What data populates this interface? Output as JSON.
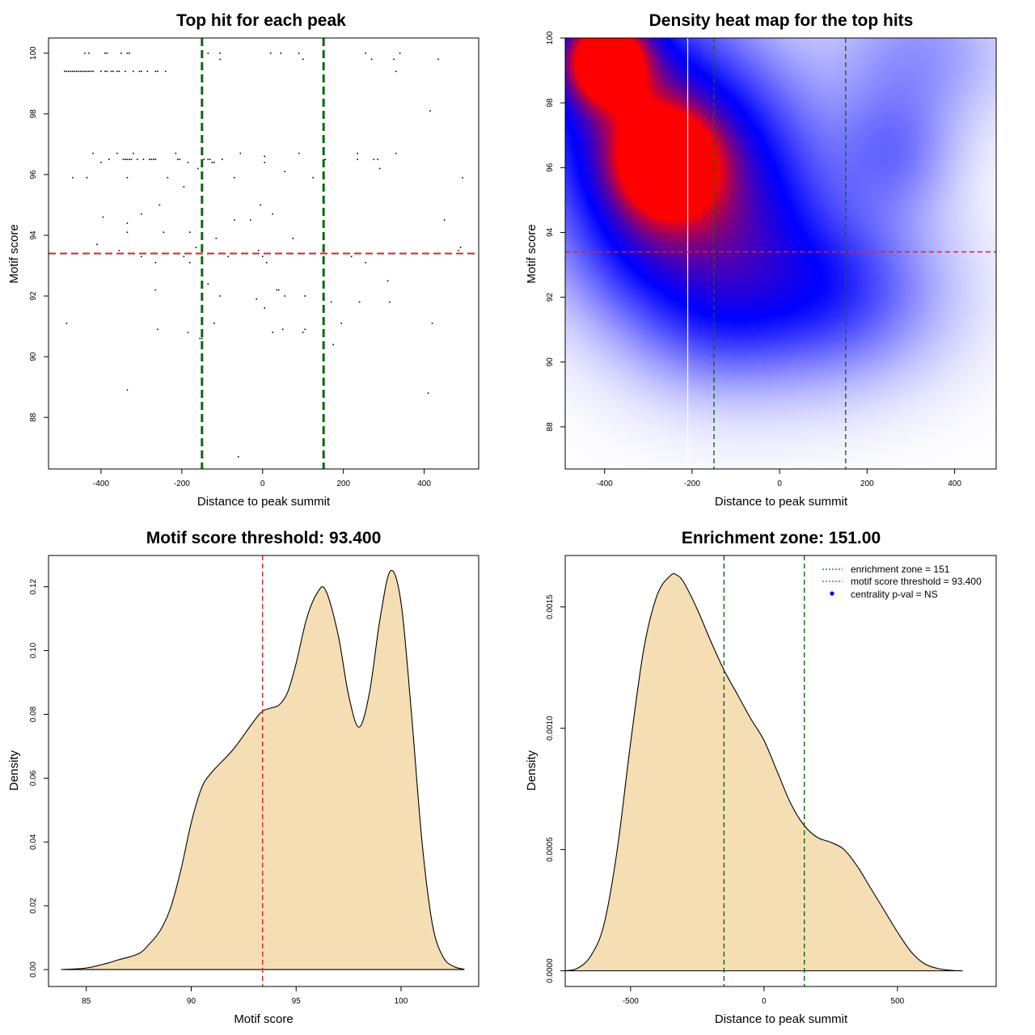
{
  "colors": {
    "axis": "#000000",
    "threshold_line": "#dd2222",
    "zone_line": "#116611",
    "density_fill": "#f5deb3",
    "point": "#000000",
    "heat_low": "#ffffff",
    "heat_mid": "#0000ff",
    "heat_high": "#ff0000"
  },
  "chart_data": [
    {
      "id": "scatter",
      "type": "scatter",
      "title": "Top hit for each peak",
      "xlabel": "Distance to peak summit",
      "ylabel": "Motif score",
      "xlim": [
        -530,
        535
      ],
      "ylim": [
        86.3,
        100.5
      ],
      "xticks": [
        -400,
        -200,
        0,
        200,
        400
      ],
      "yticks": [
        88,
        90,
        92,
        94,
        96,
        98,
        100
      ],
      "vlines": [
        -150,
        151
      ],
      "hline": 93.4,
      "points": [
        [
          -490,
          99.4
        ],
        [
          -485,
          99.4
        ],
        [
          -480,
          99.4
        ],
        [
          -475,
          99.4
        ],
        [
          -470,
          99.4
        ],
        [
          -465,
          99.4
        ],
        [
          -460,
          99.4
        ],
        [
          -455,
          99.4
        ],
        [
          -450,
          99.4
        ],
        [
          -445,
          99.4
        ],
        [
          -440,
          99.4
        ],
        [
          -435,
          99.4
        ],
        [
          -430,
          99.4
        ],
        [
          -425,
          99.4
        ],
        [
          -420,
          99.4
        ],
        [
          -400,
          99.4
        ],
        [
          -390,
          99.4
        ],
        [
          -385,
          99.4
        ],
        [
          -375,
          99.4
        ],
        [
          -370,
          99.4
        ],
        [
          -360,
          99.4
        ],
        [
          -355,
          99.4
        ],
        [
          -340,
          99.4
        ],
        [
          -320,
          99.4
        ],
        [
          -305,
          99.4
        ],
        [
          -300,
          99.4
        ],
        [
          -285,
          99.4
        ],
        [
          -265,
          99.4
        ],
        [
          -260,
          99.4
        ],
        [
          -240,
          99.4
        ],
        [
          -440,
          100
        ],
        [
          -430,
          100
        ],
        [
          -390,
          100
        ],
        [
          -385,
          100
        ],
        [
          -350,
          100
        ],
        [
          -335,
          100
        ],
        [
          -330,
          100
        ],
        [
          -135,
          100
        ],
        [
          -105,
          100
        ],
        [
          20,
          100
        ],
        [
          45,
          100
        ],
        [
          90,
          100
        ],
        [
          255,
          100
        ],
        [
          340,
          100
        ],
        [
          -105,
          99.8
        ],
        [
          100,
          99.8
        ],
        [
          270,
          99.8
        ],
        [
          325,
          99.8
        ],
        [
          435,
          99.8
        ],
        [
          330,
          99.4
        ],
        [
          415,
          98.1
        ],
        [
          -420,
          96.7
        ],
        [
          -360,
          96.7
        ],
        [
          -320,
          96.7
        ],
        [
          -215,
          96.7
        ],
        [
          -55,
          96.7
        ],
        [
          5,
          96.6
        ],
        [
          90,
          96.7
        ],
        [
          235,
          96.7
        ],
        [
          330,
          96.7
        ],
        [
          -400,
          96.4
        ],
        [
          -380,
          96.5
        ],
        [
          -345,
          96.5
        ],
        [
          -340,
          96.5
        ],
        [
          -335,
          96.5
        ],
        [
          -330,
          96.5
        ],
        [
          -325,
          96.5
        ],
        [
          -310,
          96.5
        ],
        [
          -295,
          96.5
        ],
        [
          -280,
          96.5
        ],
        [
          -275,
          96.5
        ],
        [
          -270,
          96.5
        ],
        [
          -265,
          96.5
        ],
        [
          -210,
          96.5
        ],
        [
          -205,
          96.5
        ],
        [
          -185,
          96.4
        ],
        [
          -145,
          96.5
        ],
        [
          -135,
          96.5
        ],
        [
          -130,
          96.5
        ],
        [
          -125,
          96.4
        ],
        [
          -120,
          96.4
        ],
        [
          -100,
          96.5
        ],
        [
          5,
          96.4
        ],
        [
          155,
          96.5
        ],
        [
          235,
          96.5
        ],
        [
          275,
          96.5
        ],
        [
          285,
          96.5
        ],
        [
          290,
          96.2
        ],
        [
          -160,
          96.2
        ],
        [
          -470,
          95.9
        ],
        [
          -435,
          95.9
        ],
        [
          -335,
          95.9
        ],
        [
          -235,
          95.9
        ],
        [
          -70,
          95.9
        ],
        [
          55,
          96.1
        ],
        [
          125,
          95.9
        ],
        [
          495,
          95.9
        ],
        [
          -195,
          95.6
        ],
        [
          -255,
          95.0
        ],
        [
          -5,
          95.0
        ],
        [
          -300,
          94.7
        ],
        [
          -395,
          94.6
        ],
        [
          25,
          94.7
        ],
        [
          -335,
          94.4
        ],
        [
          -70,
          94.5
        ],
        [
          -30,
          94.5
        ],
        [
          450,
          94.5
        ],
        [
          -335,
          94.1
        ],
        [
          -245,
          94.1
        ],
        [
          -180,
          94.1
        ],
        [
          -115,
          93.9
        ],
        [
          75,
          93.9
        ],
        [
          -410,
          93.7
        ],
        [
          -165,
          93.6
        ],
        [
          -355,
          93.5
        ],
        [
          -10,
          93.5
        ],
        [
          490,
          93.6
        ],
        [
          485,
          93.5
        ],
        [
          -300,
          93.3
        ],
        [
          -195,
          93.3
        ],
        [
          -85,
          93.3
        ],
        [
          0,
          93.3
        ],
        [
          220,
          93.3
        ],
        [
          -265,
          93.1
        ],
        [
          -180,
          93.1
        ],
        [
          10,
          93.1
        ],
        [
          255,
          93.1
        ],
        [
          -135,
          92.4
        ],
        [
          310,
          92.5
        ],
        [
          -265,
          92.2
        ],
        [
          35,
          92.2
        ],
        [
          40,
          92.2
        ],
        [
          -105,
          92.0
        ],
        [
          55,
          92.0
        ],
        [
          105,
          92.0
        ],
        [
          -15,
          91.9
        ],
        [
          170,
          91.8
        ],
        [
          240,
          91.8
        ],
        [
          315,
          91.8
        ],
        [
          -485,
          91.1
        ],
        [
          -120,
          91.1
        ],
        [
          195,
          91.1
        ],
        [
          420,
          91.1
        ],
        [
          -260,
          90.9
        ],
        [
          50,
          90.9
        ],
        [
          5,
          91.6
        ],
        [
          -185,
          90.8
        ],
        [
          25,
          90.8
        ],
        [
          100,
          90.8
        ],
        [
          105,
          90.9
        ],
        [
          -155,
          90.6
        ],
        [
          -150,
          90.6
        ],
        [
          175,
          90.4
        ],
        [
          -335,
          88.9
        ],
        [
          410,
          88.8
        ],
        [
          -60,
          86.7
        ]
      ]
    },
    {
      "id": "heatmap",
      "type": "heatmap",
      "title": "Density heat map for the top hits",
      "xlabel": "Distance to peak summit",
      "ylabel": "Motif score",
      "xlim": [
        -490,
        495
      ],
      "ylim": [
        86.7,
        100
      ],
      "xticks": [
        -400,
        -200,
        0,
        200,
        400
      ],
      "yticks": [
        88,
        90,
        92,
        94,
        96,
        98,
        100
      ],
      "vlines": [
        -150,
        151
      ],
      "white_vline": -210,
      "hline": 93.4,
      "blobs": [
        {
          "x": -400,
          "y": 99.4,
          "sx": 70,
          "sy": 1.0,
          "w": 1.0
        },
        {
          "x": -260,
          "y": 96.2,
          "sx": 80,
          "sy": 1.1,
          "w": 0.72
        },
        {
          "x": -340,
          "y": 97.5,
          "sx": 160,
          "sy": 2.6,
          "w": 0.6
        },
        {
          "x": -120,
          "y": 95.0,
          "sx": 160,
          "sy": 2.6,
          "w": 0.55
        },
        {
          "x": 110,
          "y": 92.2,
          "sx": 160,
          "sy": 1.7,
          "w": 0.35
        },
        {
          "x": 260,
          "y": 96.5,
          "sx": 90,
          "sy": 1.4,
          "w": 0.2
        },
        {
          "x": 320,
          "y": 99.5,
          "sx": 130,
          "sy": 1.5,
          "w": 0.15
        },
        {
          "x": -150,
          "y": 91.2,
          "sx": 120,
          "sy": 1.3,
          "w": 0.15
        },
        {
          "x": -300,
          "y": 93.5,
          "sx": 120,
          "sy": 1.6,
          "w": 0.2
        }
      ]
    },
    {
      "id": "score_density",
      "type": "area",
      "title": "Motif score threshold: 93.400",
      "xlabel": "Motif score",
      "ylabel": "Density",
      "xlim": [
        83.2,
        103.7
      ],
      "ylim": [
        -0.0053,
        0.1298
      ],
      "xticks": [
        85,
        90,
        95,
        100
      ],
      "yticks": [
        0.0,
        0.02,
        0.04,
        0.06,
        0.08,
        0.1,
        0.12
      ],
      "ytick_labels": [
        "0.00",
        "0.02",
        "0.04",
        "0.06",
        "0.08",
        "0.10",
        "0.12"
      ],
      "vlines": [
        93.4
      ],
      "x": [
        83.8,
        85,
        86,
        86.5,
        87.5,
        88,
        88.5,
        89,
        89.5,
        90,
        90.5,
        91,
        92,
        93,
        93.4,
        93.8,
        94.2,
        94.6,
        95,
        95.5,
        96,
        96.4,
        97,
        97.5,
        98,
        98.5,
        99,
        99.5,
        100,
        100.5,
        101,
        101.5,
        102,
        102.5,
        103
      ],
      "y": [
        0.0,
        0.0005,
        0.002,
        0.003,
        0.005,
        0.008,
        0.012,
        0.019,
        0.031,
        0.046,
        0.057,
        0.062,
        0.069,
        0.078,
        0.081,
        0.082,
        0.083,
        0.087,
        0.096,
        0.11,
        0.118,
        0.119,
        0.105,
        0.086,
        0.076,
        0.087,
        0.11,
        0.125,
        0.115,
        0.08,
        0.04,
        0.014,
        0.004,
        0.001,
        0.0001
      ]
    },
    {
      "id": "distance_density",
      "type": "area",
      "title": "Enrichment zone: 151.00",
      "xlabel": "Distance to peak summit",
      "ylabel": "Density",
      "xlim": [
        -745,
        870
      ],
      "ylim": [
        -6.46e-05,
        0.001712
      ],
      "xticks": [
        -500,
        0,
        500
      ],
      "yticks": [
        0.0,
        0.0005,
        0.001,
        0.0015
      ],
      "ytick_labels": [
        "0.0000",
        "0.0005",
        "0.0010",
        "0.0015"
      ],
      "vlines": [
        -150,
        151
      ],
      "x": [
        -745,
        -700,
        -650,
        -600,
        -550,
        -500,
        -450,
        -400,
        -350,
        -325,
        -300,
        -250,
        -200,
        -150,
        -100,
        -50,
        0,
        50,
        100,
        150,
        200,
        250,
        300,
        350,
        400,
        450,
        500,
        550,
        600,
        650,
        700,
        745
      ],
      "y": [
        0.0,
        1e-05,
        6e-05,
        0.00019,
        0.0005,
        0.00094,
        0.00133,
        0.00155,
        0.00163,
        0.00163,
        0.0016,
        0.00149,
        0.00136,
        0.00124,
        0.00114,
        0.00104,
        0.00095,
        0.00082,
        0.00069,
        0.0006,
        0.00055,
        0.00053,
        0.0005,
        0.00043,
        0.00034,
        0.00025,
        0.00016,
        8e-05,
        3e-05,
        1e-05,
        2e-06,
        0.0
      ],
      "legend": [
        {
          "label": "enrichment zone = 151",
          "kind": "dotted-line",
          "color": "#116611"
        },
        {
          "label": "motif score threshold = 93.400",
          "kind": "dotted-line",
          "color": "#dd2222"
        },
        {
          "label": "centrality p-val = NS",
          "kind": "dot",
          "color": "#0000ff"
        }
      ]
    }
  ]
}
